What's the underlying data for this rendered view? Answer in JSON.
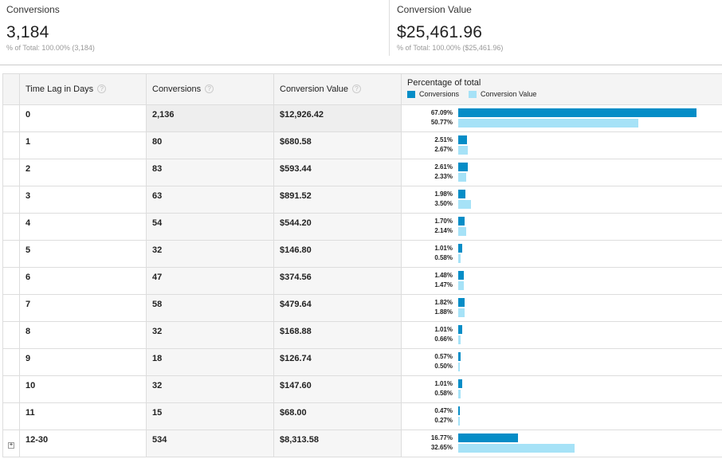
{
  "summary": {
    "conversions": {
      "label": "Conversions",
      "value": "3,184",
      "sub": "% of Total: 100.00% (3,184)"
    },
    "conversion_value": {
      "label": "Conversion Value",
      "value": "$25,461.96",
      "sub": "% of Total: 100.00% ($25,461.96)"
    }
  },
  "table": {
    "headers": {
      "time_lag": "Time Lag in Days",
      "conversions": "Conversions",
      "conversion_value": "Conversion Value",
      "percentage": "Percentage of total",
      "legend_conversions": "Conversions",
      "legend_value": "Conversion Value",
      "help": "?"
    },
    "colors": {
      "conversions": "#058dc7",
      "conversion_value": "#a6e2f7"
    },
    "max_bar_percent": 67.09,
    "rows": [
      {
        "lag": "0",
        "conversions": "2,136",
        "value": "$12,926.42",
        "pct_conv": "67.09%",
        "pct_val": "50.77%",
        "conv_share": 67.09,
        "val_share": 50.77
      },
      {
        "lag": "1",
        "conversions": "80",
        "value": "$680.58",
        "pct_conv": "2.51%",
        "pct_val": "2.67%",
        "conv_share": 2.51,
        "val_share": 2.67
      },
      {
        "lag": "2",
        "conversions": "83",
        "value": "$593.44",
        "pct_conv": "2.61%",
        "pct_val": "2.33%",
        "conv_share": 2.61,
        "val_share": 2.33
      },
      {
        "lag": "3",
        "conversions": "63",
        "value": "$891.52",
        "pct_conv": "1.98%",
        "pct_val": "3.50%",
        "conv_share": 1.98,
        "val_share": 3.5
      },
      {
        "lag": "4",
        "conversions": "54",
        "value": "$544.20",
        "pct_conv": "1.70%",
        "pct_val": "2.14%",
        "conv_share": 1.7,
        "val_share": 2.14
      },
      {
        "lag": "5",
        "conversions": "32",
        "value": "$146.80",
        "pct_conv": "1.01%",
        "pct_val": "0.58%",
        "conv_share": 1.01,
        "val_share": 0.58
      },
      {
        "lag": "6",
        "conversions": "47",
        "value": "$374.56",
        "pct_conv": "1.48%",
        "pct_val": "1.47%",
        "conv_share": 1.48,
        "val_share": 1.47
      },
      {
        "lag": "7",
        "conversions": "58",
        "value": "$479.64",
        "pct_conv": "1.82%",
        "pct_val": "1.88%",
        "conv_share": 1.82,
        "val_share": 1.88
      },
      {
        "lag": "8",
        "conversions": "32",
        "value": "$168.88",
        "pct_conv": "1.01%",
        "pct_val": "0.66%",
        "conv_share": 1.01,
        "val_share": 0.66
      },
      {
        "lag": "9",
        "conversions": "18",
        "value": "$126.74",
        "pct_conv": "0.57%",
        "pct_val": "0.50%",
        "conv_share": 0.57,
        "val_share": 0.5
      },
      {
        "lag": "10",
        "conversions": "32",
        "value": "$147.60",
        "pct_conv": "1.01%",
        "pct_val": "0.58%",
        "conv_share": 1.01,
        "val_share": 0.58
      },
      {
        "lag": "11",
        "conversions": "15",
        "value": "$68.00",
        "pct_conv": "0.47%",
        "pct_val": "0.27%",
        "conv_share": 0.47,
        "val_share": 0.27
      },
      {
        "lag": "12-30",
        "conversions": "534",
        "value": "$8,313.58",
        "pct_conv": "16.77%",
        "pct_val": "32.65%",
        "conv_share": 16.77,
        "val_share": 32.65,
        "expandable": true,
        "expand_glyph": "+"
      }
    ]
  }
}
